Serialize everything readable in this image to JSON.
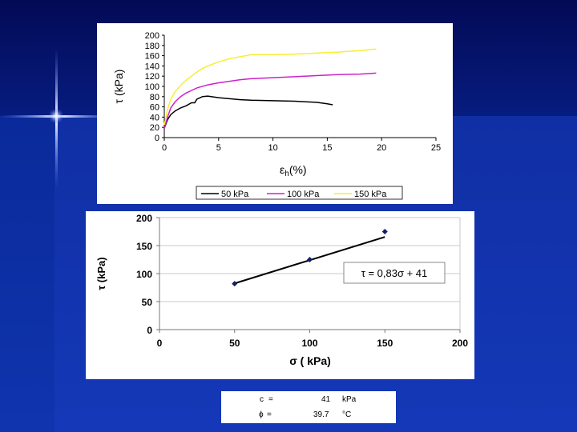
{
  "colors": {
    "series_50": "#000000",
    "series_100": "#cc22cc",
    "series_150": "#f4f030",
    "fit_line": "#000000",
    "points": "#10206a"
  },
  "chart_data": [
    {
      "type": "line",
      "ylabel": "τ (kPa)",
      "xlabel_main": "ε",
      "xlabel_sub": "h",
      "xlabel_unit": "(%)",
      "xlim": [
        0,
        25
      ],
      "ylim": [
        0,
        200
      ],
      "x_ticks": [
        0,
        5,
        10,
        15,
        20,
        25
      ],
      "y_ticks": [
        0,
        20,
        40,
        60,
        80,
        100,
        120,
        140,
        160,
        180,
        200
      ],
      "grid": false,
      "legend_position": "bottom",
      "series": [
        {
          "name": "50 kPa",
          "x": [
            0,
            0.3,
            0.6,
            1.0,
            1.5,
            2.0,
            2.5,
            2.8,
            3.0,
            3.5,
            4.0,
            5.0,
            6.0,
            7.0,
            8.0,
            10.0,
            12.0,
            13.0,
            14.0,
            15.0,
            15.5
          ],
          "y": [
            18,
            35,
            45,
            52,
            58,
            62,
            68,
            68,
            75,
            80,
            81,
            78,
            76,
            74,
            73,
            72,
            71,
            70,
            69,
            66,
            64
          ]
        },
        {
          "name": "100 kPa",
          "x": [
            0,
            0.3,
            0.6,
            1.0,
            1.5,
            2.0,
            2.5,
            3.0,
            4.0,
            5.0,
            6.0,
            7.0,
            8.0,
            10.0,
            12.0,
            14.0,
            16.0,
            18.0,
            19.5
          ],
          "y": [
            18,
            40,
            58,
            70,
            80,
            87,
            92,
            97,
            103,
            107,
            110,
            113,
            115,
            117,
            119,
            121,
            123,
            124,
            126
          ]
        },
        {
          "name": "150 kPa",
          "x": [
            0,
            0.3,
            0.6,
            1.0,
            1.5,
            2.0,
            2.5,
            3.0,
            3.5,
            4.0,
            5.0,
            6.0,
            7.0,
            8.0,
            10.0,
            12.0,
            14.0,
            16.0,
            18.0,
            19.5
          ],
          "y": [
            25,
            55,
            75,
            90,
            102,
            112,
            120,
            128,
            135,
            140,
            148,
            154,
            158,
            162,
            162,
            163,
            165,
            167,
            170,
            173
          ]
        }
      ]
    },
    {
      "type": "scatter",
      "ylabel": "τ (kPa)",
      "xlabel": "σ ( kPa)",
      "xlim": [
        0,
        200
      ],
      "ylim": [
        0,
        200
      ],
      "x_ticks": [
        0,
        50,
        100,
        150,
        200
      ],
      "y_ticks": [
        0,
        50,
        100,
        150,
        200
      ],
      "grid": true,
      "x": [
        50,
        100,
        150
      ],
      "y": [
        82,
        125,
        175
      ],
      "fit": {
        "slope": 0.83,
        "intercept": 41,
        "x_range": [
          50,
          150
        ]
      },
      "annotation": "τ = 0,83σ + 41"
    }
  ],
  "params": [
    {
      "symbol": "c",
      "eq": "=",
      "value": "41",
      "unit": "kPa"
    },
    {
      "symbol": "ϕ",
      "eq": "=",
      "value": "39.7",
      "unit": "°C"
    }
  ]
}
